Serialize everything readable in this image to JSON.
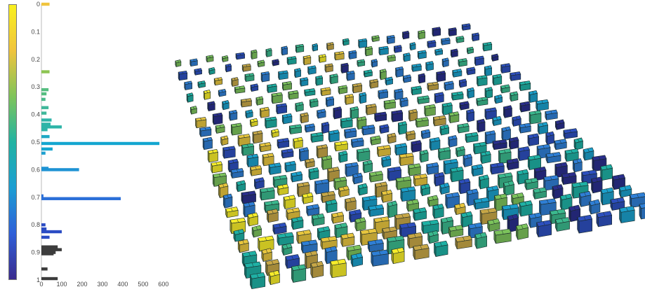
{
  "colorbar": {
    "colormap": [
      "#3a2b8e",
      "#2f5fd8",
      "#1b9ed3",
      "#21b3a2",
      "#7fc45a",
      "#f0c43d",
      "#f9f01e"
    ],
    "range": [
      0,
      1
    ]
  },
  "histogram": {
    "y_ticks": [
      "0",
      "0.1",
      "0.2",
      "0.3",
      "0.4",
      "0.5",
      "0.6",
      "0.7",
      "0.8",
      "0.9",
      "1"
    ],
    "x_ticks": [
      "0",
      "100",
      "200",
      "300",
      "400",
      "500",
      "600"
    ],
    "bins": [
      {
        "y": 0.0,
        "count": 40,
        "color": "#f0c43d"
      },
      {
        "y": 0.245,
        "count": 40,
        "color": "#8cc452"
      },
      {
        "y": 0.31,
        "count": 35,
        "color": "#55bd80"
      },
      {
        "y": 0.325,
        "count": 25,
        "color": "#55bd80"
      },
      {
        "y": 0.345,
        "count": 20,
        "color": "#4bba8a"
      },
      {
        "y": 0.375,
        "count": 35,
        "color": "#3fb79a"
      },
      {
        "y": 0.395,
        "count": 25,
        "color": "#3fb79a"
      },
      {
        "y": 0.42,
        "count": 50,
        "color": "#2eb4a8"
      },
      {
        "y": 0.435,
        "count": 45,
        "color": "#2eb4a8"
      },
      {
        "y": 0.445,
        "count": 100,
        "color": "#2eb4a8"
      },
      {
        "y": 0.455,
        "count": 30,
        "color": "#2eb4a8"
      },
      {
        "y": 0.48,
        "count": 40,
        "color": "#20a8c4"
      },
      {
        "y": 0.505,
        "count": 580,
        "color": "#14a6d0"
      },
      {
        "y": 0.525,
        "count": 55,
        "color": "#14a6d0"
      },
      {
        "y": 0.54,
        "count": 20,
        "color": "#1fa0d0"
      },
      {
        "y": 0.595,
        "count": 35,
        "color": "#1e93d4"
      },
      {
        "y": 0.6,
        "count": 185,
        "color": "#1e93d4"
      },
      {
        "y": 0.695,
        "count": 10,
        "color": "#2a6fd8"
      },
      {
        "y": 0.705,
        "count": 390,
        "color": "#2a6fd8"
      },
      {
        "y": 0.8,
        "count": 20,
        "color": "#2b4cc4"
      },
      {
        "y": 0.815,
        "count": 25,
        "color": "#2b4cc4"
      },
      {
        "y": 0.825,
        "count": 100,
        "color": "#2b4cc4"
      },
      {
        "y": 0.845,
        "count": 40,
        "color": "#2b4cc4"
      },
      {
        "y": 0.88,
        "count": 80,
        "color": "#3c3c3c"
      },
      {
        "y": 0.89,
        "count": 100,
        "color": "#3c3c3c"
      },
      {
        "y": 0.9,
        "count": 70,
        "color": "#3c3c3c"
      },
      {
        "y": 0.905,
        "count": 60,
        "color": "#3c3c3c"
      },
      {
        "y": 0.96,
        "count": 30,
        "color": "#3c3c3c"
      },
      {
        "y": 0.995,
        "count": 80,
        "color": "#3c3c3c"
      }
    ]
  },
  "mesh": {
    "grid_size": 20,
    "face_colors": [
      "#2a2e8c",
      "#2d4fbe",
      "#2f7fd6",
      "#1ba0cc",
      "#1fb1a5",
      "#3bb98e",
      "#7cc35c",
      "#c7a747",
      "#e8c63e",
      "#f6ec2a"
    ],
    "edge_color": "#1a2a2a"
  }
}
